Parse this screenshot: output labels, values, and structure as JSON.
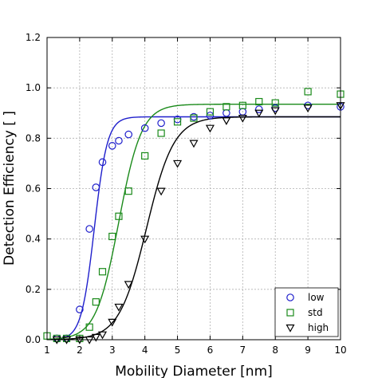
{
  "chart_data": {
    "type": "scatter",
    "title": "",
    "xlabel": "Mobility Diameter [nm]",
    "ylabel": "Detection Efficiency [ ]",
    "xlim": [
      1,
      10
    ],
    "ylim": [
      0,
      1.2
    ],
    "xticks": [
      "1",
      "2",
      "3",
      "4",
      "5",
      "6",
      "7",
      "8",
      "9",
      "10"
    ],
    "yticks": [
      "0.0",
      "0.2",
      "0.4",
      "0.6",
      "0.8",
      "1.0",
      "1.2"
    ],
    "grid": true,
    "legend_position": "bottom-right",
    "series": [
      {
        "name": "low",
        "marker": "circle",
        "color": "#1f1fcc",
        "x": [
          1.3,
          1.6,
          2.0,
          2.3,
          2.5,
          2.7,
          3.0,
          3.2,
          3.5,
          4.0,
          4.5,
          5.0,
          5.5,
          6.0,
          6.5,
          7.0,
          7.5,
          8.0,
          9.0,
          10.0
        ],
        "y": [
          0.005,
          0.005,
          0.12,
          0.44,
          0.605,
          0.705,
          0.77,
          0.79,
          0.815,
          0.84,
          0.86,
          0.875,
          0.885,
          0.89,
          0.9,
          0.905,
          0.915,
          0.92,
          0.93,
          0.925
        ],
        "fit": {
          "plateau": 0.885,
          "d50": 2.45,
          "width": 0.2
        }
      },
      {
        "name": "std",
        "marker": "square",
        "color": "#1a8a1a",
        "x": [
          1.0,
          1.3,
          1.6,
          2.0,
          2.3,
          2.5,
          2.7,
          3.0,
          3.2,
          3.5,
          4.0,
          4.5,
          5.0,
          5.5,
          6.0,
          6.5,
          7.0,
          7.5,
          8.0,
          9.0,
          10.0
        ],
        "y": [
          0.015,
          0.005,
          0.005,
          0.005,
          0.05,
          0.15,
          0.27,
          0.41,
          0.49,
          0.59,
          0.73,
          0.82,
          0.865,
          0.88,
          0.905,
          0.925,
          0.93,
          0.945,
          0.94,
          0.985,
          0.975
        ],
        "fit": {
          "plateau": 0.935,
          "d50": 3.2,
          "width": 0.35
        }
      },
      {
        "name": "high",
        "marker": "triangle-down",
        "color": "#000000",
        "x": [
          1.3,
          1.6,
          2.0,
          2.3,
          2.5,
          2.7,
          3.0,
          3.2,
          3.5,
          4.0,
          4.5,
          5.0,
          5.5,
          6.0,
          6.5,
          7.0,
          7.5,
          8.0,
          9.0,
          10.0
        ],
        "y": [
          0.0,
          0.0,
          0.0,
          0.0,
          0.01,
          0.02,
          0.07,
          0.13,
          0.22,
          0.4,
          0.59,
          0.7,
          0.78,
          0.84,
          0.87,
          0.88,
          0.9,
          0.91,
          0.92,
          0.93
        ],
        "fit": {
          "plateau": 0.885,
          "d50": 4.05,
          "width": 0.42
        }
      }
    ]
  }
}
